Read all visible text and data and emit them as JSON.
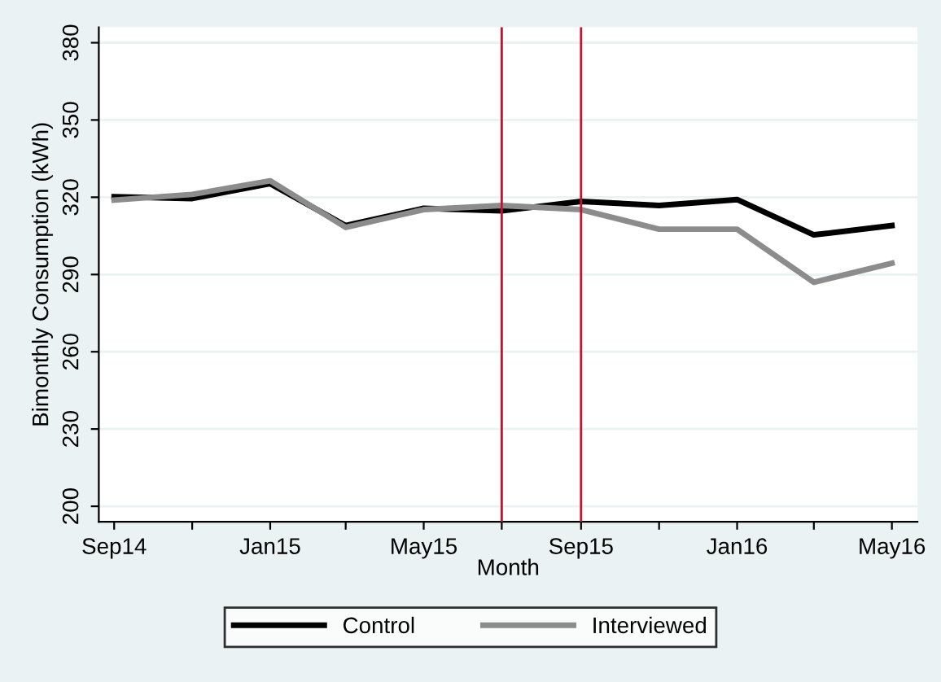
{
  "chart_data": {
    "type": "line",
    "xlabel": "Month",
    "ylabel": "Bimonthly Consumption (kWh)",
    "x": [
      "2014-09",
      "2014-11",
      "2015-01",
      "2015-03",
      "2015-05",
      "2015-07",
      "2015-09",
      "2015-11",
      "2016-01",
      "2016-03",
      "2016-05"
    ],
    "series": [
      {
        "name": "Control",
        "color": "#000000",
        "values": [
          320.2,
          319.5,
          325.3,
          309,
          315.7,
          314.7,
          318.4,
          316.8,
          319.1,
          305.4,
          309
        ]
      },
      {
        "name": "Interviewed",
        "color": "#8c8c8c",
        "values": [
          318.9,
          321.1,
          326.4,
          308.3,
          315.2,
          316.8,
          315.2,
          307.6,
          307.6,
          287,
          294.4
        ]
      }
    ],
    "xlim": [
      "2014-08-20",
      "2016-05-21"
    ],
    "xticks": [
      {
        "value": "2014-09",
        "label": "Sep14"
      },
      {
        "value": "2014-11",
        "label": null
      },
      {
        "value": "2015-01",
        "label": "Jan15"
      },
      {
        "value": "2015-03",
        "label": null
      },
      {
        "value": "2015-05",
        "label": "May15"
      },
      {
        "value": "2015-07",
        "label": null
      },
      {
        "value": "2015-09",
        "label": "Sep15"
      },
      {
        "value": "2015-11",
        "label": null
      },
      {
        "value": "2016-01",
        "label": "Jan16"
      },
      {
        "value": "2016-03",
        "label": null
      },
      {
        "value": "2016-05",
        "label": "May16"
      }
    ],
    "ylim": [
      194,
      386
    ],
    "yticks": [
      200,
      230,
      260,
      290,
      320,
      350,
      380
    ],
    "ref_lines": [
      {
        "axis": "x",
        "value": "2015-07",
        "color": "#c8102e"
      },
      {
        "axis": "x",
        "value": "2015-09",
        "color": "#c8102e"
      }
    ],
    "grid": "y",
    "legend": "bottom",
    "marker": "none",
    "line_style": "solid"
  }
}
